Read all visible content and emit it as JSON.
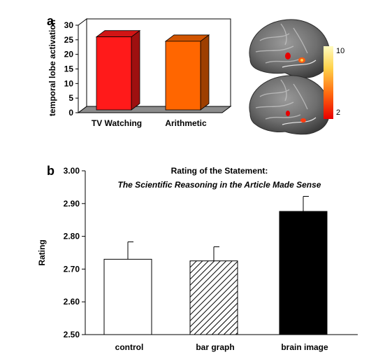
{
  "panels": {
    "a": "a",
    "b": "b"
  },
  "colorbar": {
    "max_label": "10",
    "min_label": "2",
    "colors": [
      "#e80000",
      "#ff6a10",
      "#ffd24a",
      "#fffbc0"
    ]
  },
  "chart_data": [
    {
      "type": "bar",
      "panel": "a",
      "title": "",
      "xlabel": "",
      "ylabel": "temporal lobe activation",
      "categories": [
        "TV Watching",
        "Arithmetic"
      ],
      "values": [
        26,
        24.5
      ],
      "colors": [
        "#ff1a1a",
        "#ff6600"
      ],
      "ylim": [
        0,
        30
      ],
      "yticks": [
        "0",
        "5",
        "10",
        "15",
        "20",
        "25",
        "30"
      ],
      "style": "3d-bar",
      "grid": false,
      "legend": "none"
    },
    {
      "type": "bar",
      "panel": "b",
      "title": "Rating of the Statement:",
      "subtitle": "The Scientific Reasoning in the Article Made Sense",
      "xlabel": "",
      "ylabel": "Rating",
      "categories": [
        "control",
        "bar graph",
        "brain image"
      ],
      "values": [
        2.73,
        2.725,
        2.876
      ],
      "errors": [
        0.053,
        0.043,
        0.046
      ],
      "fills": [
        "white",
        "hatched",
        "black"
      ],
      "ylim": [
        2.5,
        3.0
      ],
      "yticks": [
        "2.50",
        "2.60",
        "2.70",
        "2.80",
        "2.90",
        "3.00"
      ],
      "grid": false,
      "legend": "none"
    }
  ]
}
